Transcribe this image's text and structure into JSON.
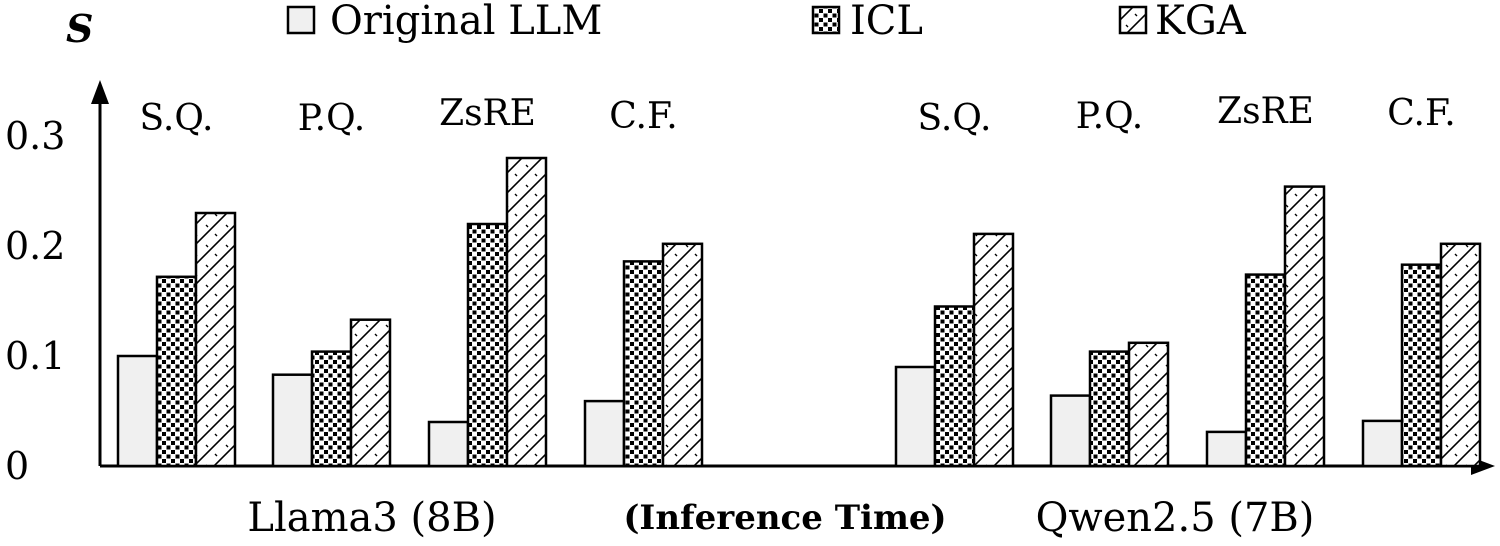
{
  "chart_data": {
    "type": "bar",
    "ylabel": "S",
    "ylim": [
      0,
      0.35
    ],
    "yticks": [
      {
        "value": 0,
        "label": "0"
      },
      {
        "value": 0.1,
        "label": "0.1"
      },
      {
        "value": 0.2,
        "label": "0.2"
      },
      {
        "value": 0.3,
        "label": "0.3"
      }
    ],
    "legend": {
      "placement": "top",
      "entries": [
        {
          "name": "Original LLM",
          "pattern": "plain"
        },
        {
          "name": "ICL",
          "pattern": "dots"
        },
        {
          "name": "KGA",
          "pattern": "hatch"
        }
      ]
    },
    "caption": "(Inference Time)",
    "groups": [
      {
        "model": "Llama3 (8B)",
        "categories": [
          "S.Q.",
          "P.Q.",
          "ZsRE",
          "C.F."
        ],
        "series": [
          {
            "name": "Original LLM",
            "values": [
              0.1,
              0.083,
              0.04,
              0.059
            ]
          },
          {
            "name": "ICL",
            "values": [
              0.172,
              0.104,
              0.22,
              0.186
            ]
          },
          {
            "name": "KGA",
            "values": [
              0.23,
              0.133,
              0.28,
              0.202
            ]
          }
        ]
      },
      {
        "model": "Qwen2.5 (7B)",
        "categories": [
          "S.Q.",
          "P.Q.",
          "ZsRE",
          "C.F."
        ],
        "series": [
          {
            "name": "Original LLM",
            "values": [
              0.09,
              0.064,
              0.031,
              0.041
            ]
          },
          {
            "name": "ICL",
            "values": [
              0.145,
              0.104,
              0.174,
              0.183
            ]
          },
          {
            "name": "KGA",
            "values": [
              0.211,
              0.112,
              0.254,
              0.202
            ]
          }
        ]
      }
    ]
  }
}
